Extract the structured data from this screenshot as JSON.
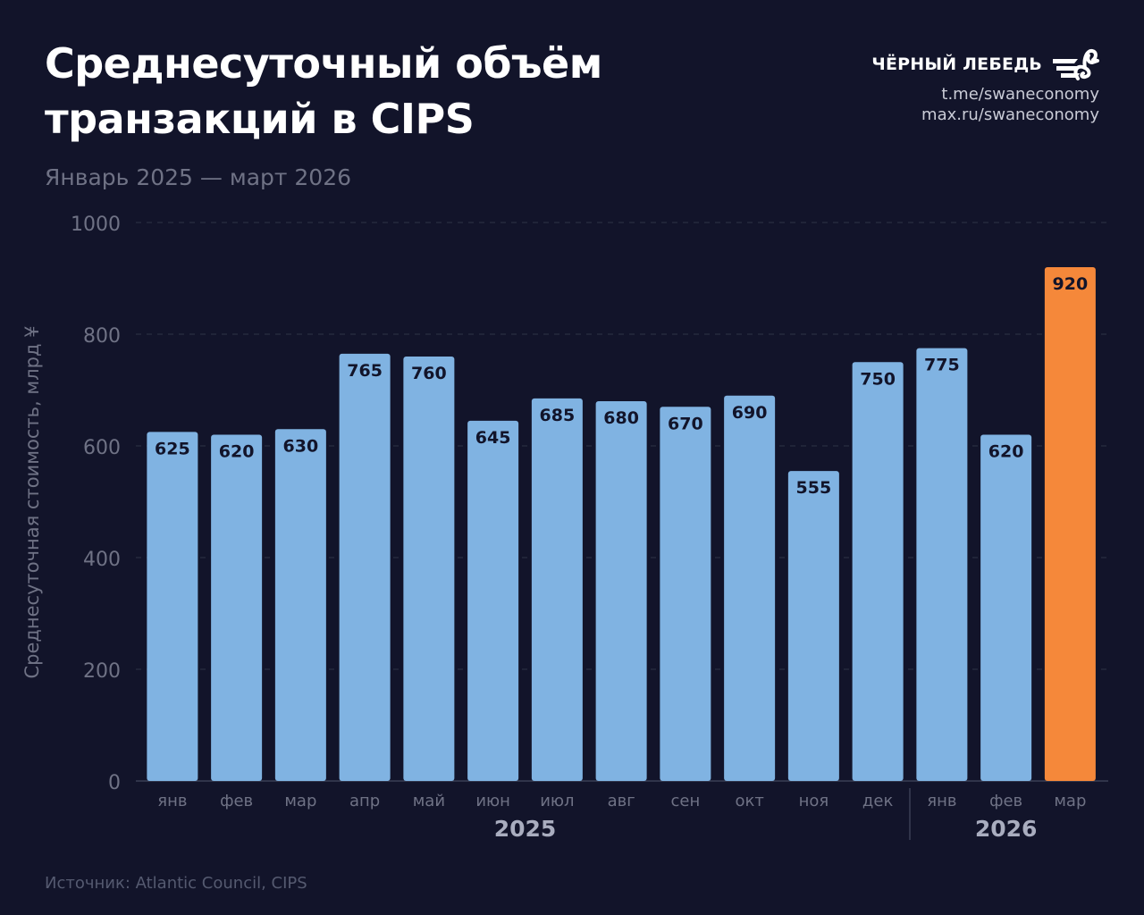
{
  "title_lines": [
    "Среднесуточный объём",
    "транзакций в CIPS"
  ],
  "subtitle": "Январь 2025 — март 2026",
  "brand": {
    "name": "ЧЁРНЫЙ ЛЕБЕДЬ",
    "links": [
      "t.me/swaneconomy",
      "max.ru/swaneconomy"
    ],
    "icon": "swan-icon"
  },
  "source": "Источник: Atlantic Council, CIPS",
  "colors": {
    "background": "#12142a",
    "bar": "#80b3e2",
    "highlight": "#f5883a",
    "grid": "#2f3347",
    "label_dark": "#12142a"
  },
  "chart_data": {
    "type": "bar",
    "ylabel": "Среднесуточная стоимость, млрд ¥",
    "ylim": [
      0,
      1000
    ],
    "yticks": [
      0,
      200,
      400,
      600,
      800,
      1000
    ],
    "grid": true,
    "categories": [
      "янв",
      "фев",
      "мар",
      "апр",
      "май",
      "июн",
      "июл",
      "авг",
      "сен",
      "окт",
      "ноя",
      "дек",
      "янв",
      "фев",
      "мар"
    ],
    "values": [
      625,
      620,
      630,
      765,
      760,
      645,
      685,
      680,
      670,
      690,
      555,
      750,
      775,
      620,
      920
    ],
    "highlight_index": 14,
    "groups": [
      {
        "label": "2025",
        "start": 0,
        "end": 11
      },
      {
        "label": "2026",
        "start": 12,
        "end": 14
      }
    ]
  }
}
